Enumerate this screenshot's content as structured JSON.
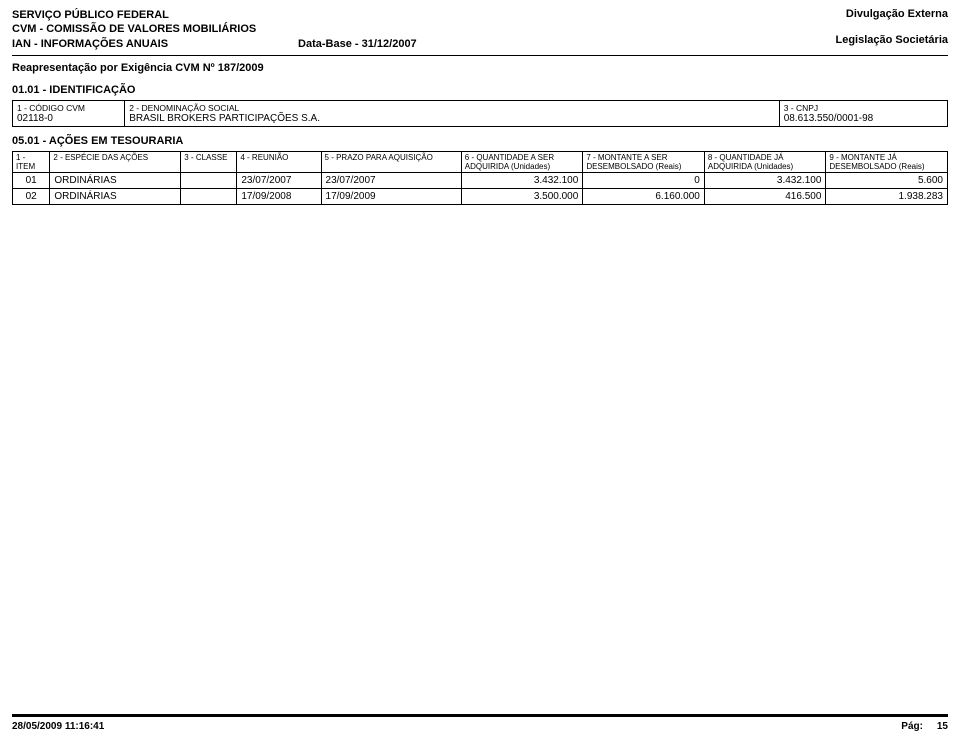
{
  "header": {
    "left1": "SERVIÇO PÚBLICO FEDERAL",
    "left2": "CVM - COMISSÃO DE VALORES MOBILIÁRIOS",
    "left3a": "IAN - INFORMAÇÕES ANUAIS",
    "left3b": "Data-Base - 31/12/2007",
    "right1": "Divulgação Externa",
    "right2": "Legislação Societária"
  },
  "sub1": "Reapresentação por Exigência CVM Nº 187/2009",
  "section1": "01.01 - IDENTIFICAÇÃO",
  "ident": {
    "codigo_lbl": "1 - CÓDIGO CVM",
    "codigo_val": "02118-0",
    "denom_lbl": "2 - DENOMINAÇÃO SOCIAL",
    "denom_val": "BRASIL BROKERS PARTICIPAÇÕES S.A.",
    "cnpj_lbl": "3 - CNPJ",
    "cnpj_val": "08.613.550/0001-98"
  },
  "section2": "05.01 - AÇÕES EM TESOURARIA",
  "cols": {
    "c1": "1 - ITEM",
    "c2": "2 - ESPÉCIE DAS AÇÕES",
    "c3": "3 - CLASSE",
    "c4": "4 - REUNIÃO",
    "c5": "5 - PRAZO PARA AQUISIÇÃO",
    "c6": "6 - QUANTIDADE A SER ADQUIRIDA\n(Unidades)",
    "c7": "7 - MONTANTE A SER DESEMBOLSADO\n(Reais)",
    "c8": "8 - QUANTIDADE JÁ ADQUIRIDA\n(Unidades)",
    "c9": "9 - MONTANTE JÁ DESEMBOLSADO\n(Reais)"
  },
  "rows": [
    {
      "item": "01",
      "especie": "ORDINÁRIAS",
      "classe": "",
      "reuniao": "23/07/2007",
      "prazo": "23/07/2007",
      "qser": "3.432.100",
      "mser": "0",
      "qja": "3.432.100",
      "mja": "5.600"
    },
    {
      "item": "02",
      "especie": "ORDINÁRIAS",
      "classe": "",
      "reuniao": "17/09/2008",
      "prazo": "17/09/2009",
      "qser": "3.500.000",
      "mser": "6.160.000",
      "qja": "416.500",
      "mja": "1.938.283"
    }
  ],
  "footer": {
    "ts": "28/05/2009 11:16:41",
    "pg_lbl": "Pág:",
    "pg_num": "15"
  },
  "style": {
    "col_widths_pct": [
      4,
      14,
      6,
      9,
      15,
      13,
      13,
      13,
      13
    ]
  }
}
